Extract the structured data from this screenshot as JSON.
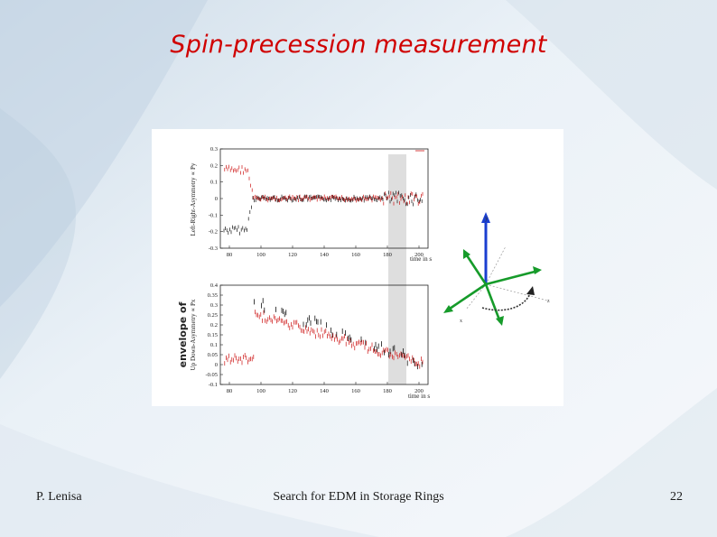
{
  "slide": {
    "title": "Spin-precession measurement",
    "footer_left": "P. Lenisa",
    "footer_center": "Search for EDM in Storage Rings",
    "footer_right": "22"
  },
  "figure": {
    "top_plot": {
      "ylabel": "Left-Right-Asymmetry ∝ Py",
      "xlabel": "time in s",
      "yticks": [
        "0.3",
        "0.2",
        "0.1",
        "0",
        "-0.1",
        "-0.2",
        "-0.3"
      ],
      "xticks": [
        "80",
        "100",
        "120",
        "140",
        "160",
        "180",
        "200"
      ]
    },
    "bottom_plot": {
      "annotation": "envelope of",
      "ylabel": "Up Down-Asymmetry ∝ Px",
      "xlabel": "time in s",
      "yticks": [
        "0.4",
        "0.35",
        "0.3",
        "0.25",
        "0.2",
        "0.15",
        "0.1",
        "0.05",
        "0",
        "-0.05",
        "-0.1"
      ],
      "xticks": [
        "80",
        "100",
        "120",
        "140",
        "160",
        "180",
        "200"
      ]
    },
    "diagram": {
      "label_y": "y",
      "label_z": "z",
      "label_x": "x"
    }
  },
  "colors": {
    "title": "#d00000",
    "series_red": "#cc1111",
    "series_black": "#111111",
    "axis_blue": "#1a3fd0",
    "vector_green": "#169b2a"
  }
}
